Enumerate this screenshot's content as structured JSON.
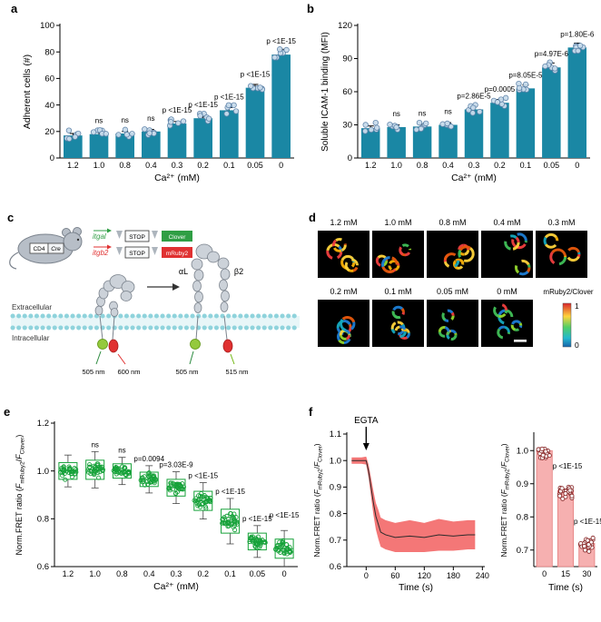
{
  "figure": {
    "bg": "#ffffff"
  },
  "panels": {
    "a": {
      "letter": "a"
    },
    "b": {
      "letter": "b"
    },
    "c": {
      "letter": "c"
    },
    "d": {
      "letter": "d"
    },
    "e": {
      "letter": "e"
    },
    "f": {
      "letter": "f"
    }
  },
  "chart_data": [
    {
      "id": "a",
      "type": "bar",
      "xlabel": "Ca²⁺ (mM)",
      "ylabel": "Adherent cells (#)",
      "categories": [
        "1.2",
        "1.0",
        "0.8",
        "0.4",
        "0.3",
        "0.2",
        "0.1",
        "0.05",
        "0"
      ],
      "values": [
        17,
        18,
        18.5,
        20,
        26,
        30,
        36,
        53,
        78
      ],
      "errors": [
        1.5,
        1.5,
        1.5,
        1.5,
        1.5,
        1.5,
        2,
        2.5,
        4
      ],
      "significance": [
        "",
        "ns",
        "ns",
        "ns",
        "p <1E-15",
        "p <1E-15",
        "p <1E-15",
        "p <1E-15",
        "p <1E-15"
      ],
      "ylim": [
        0,
        100
      ],
      "yticks": [
        0,
        20,
        40,
        60,
        80,
        100
      ],
      "ytick_decimals": 0,
      "bar_color": "#1a87a4",
      "dot_fill": "#c9dcec",
      "dot_edge": "#5d82a8",
      "points_per_bar": 6
    },
    {
      "id": "b",
      "type": "bar",
      "xlabel": "Ca²⁺ (mM)",
      "ylabel": "Soluble ICAM-1 binding (MFI)",
      "categories": [
        "1.2",
        "1.0",
        "0.8",
        "0.4",
        "0.3",
        "0.2",
        "0.1",
        "0.05",
        "0"
      ],
      "values": [
        27,
        28,
        28.5,
        30,
        44,
        50,
        63,
        82,
        100
      ],
      "errors": [
        2,
        2,
        2,
        2,
        3,
        3,
        3,
        4,
        4
      ],
      "significance": [
        "",
        "ns",
        "ns",
        "ns",
        "p=2.86E-5",
        "p=0.0005",
        "p=8.05E-5",
        "p=4.97E-6",
        "p=1.80E-6"
      ],
      "ylim": [
        0,
        120
      ],
      "yticks": [
        0,
        30,
        60,
        90,
        120
      ],
      "ytick_decimals": 0,
      "bar_color": "#1a87a4",
      "dot_fill": "#c9dcec",
      "dot_edge": "#5d82a8",
      "points_per_bar": 6
    },
    {
      "id": "e",
      "type": "box-scatter",
      "xlabel": "Ca²⁺ (mM)",
      "ylabel_parts": [
        [
          "Norm.FRET ratio (",
          ""
        ],
        [
          "F",
          "i"
        ],
        [
          "mRuby2",
          "sub"
        ],
        [
          "/",
          ""
        ],
        [
          "F",
          "i"
        ],
        [
          "Clover",
          "sub"
        ],
        [
          ")",
          ""
        ]
      ],
      "categories": [
        "1.2",
        "1.0",
        "0.8",
        "0.4",
        "0.3",
        "0.2",
        "0.1",
        "0.05",
        "0"
      ],
      "medians": [
        1.0,
        1.005,
        1.0,
        0.965,
        0.93,
        0.875,
        0.79,
        0.705,
        0.675
      ],
      "spreads": [
        0.035,
        0.04,
        0.03,
        0.03,
        0.035,
        0.04,
        0.05,
        0.035,
        0.04
      ],
      "significance": [
        "",
        "ns",
        "ns",
        "p=0.0094",
        "p=3.03E-9",
        "p <1E-15",
        "p <1E-15",
        "p <1E-15",
        "p <1E-15"
      ],
      "sig_dy": [
        0,
        0,
        0,
        0,
        0,
        0,
        0,
        0,
        -9
      ],
      "ylim": [
        0.6,
        1.2
      ],
      "yticks": [
        0.6,
        0.8,
        1.0,
        1.2
      ],
      "ytick_decimals": 1,
      "color": "#17a23a",
      "points_per_box": 34
    },
    {
      "id": "f_line",
      "type": "line",
      "xlabel": "Time (s)",
      "ylabel_parts": [
        [
          "Norm.FRET ratio (",
          ""
        ],
        [
          "F",
          "i"
        ],
        [
          "mRuby2",
          "sub"
        ],
        [
          "/",
          ""
        ],
        [
          "F",
          "i"
        ],
        [
          "Clover",
          "sub"
        ],
        [
          ")",
          ""
        ]
      ],
      "annotation": "EGTA",
      "x": [
        -30,
        -20,
        -10,
        0,
        5,
        10,
        15,
        20,
        25,
        30,
        40,
        60,
        90,
        120,
        150,
        180,
        210,
        225
      ],
      "y": [
        1.0,
        1.0,
        1.0,
        1.0,
        0.96,
        0.9,
        0.84,
        0.79,
        0.76,
        0.73,
        0.72,
        0.71,
        0.715,
        0.71,
        0.72,
        0.715,
        0.72,
        0.72
      ],
      "band": [
        0.012,
        0.012,
        0.012,
        0.015,
        0.025,
        0.035,
        0.045,
        0.05,
        0.055,
        0.055,
        0.055,
        0.055,
        0.06,
        0.055,
        0.06,
        0.055,
        0.055,
        0.055
      ],
      "xlim": [
        -40,
        245
      ],
      "xticks": [
        0,
        60,
        120,
        180,
        240
      ],
      "ylim": [
        0.6,
        1.1
      ],
      "yticks": [
        0.6,
        0.7,
        0.8,
        0.9,
        1.0,
        1.1
      ],
      "ytick_decimals": 1,
      "line_color": "#2b2b2b",
      "band_color": "#f25f5f"
    },
    {
      "id": "f_bar",
      "type": "bar-scatter",
      "xlabel": "Time (s)",
      "ylabel_parts": [
        [
          "Norm.FRET ratio (",
          ""
        ],
        [
          "F",
          "i"
        ],
        [
          "mRuby2",
          "sub"
        ],
        [
          "/",
          ""
        ],
        [
          "F",
          "i"
        ],
        [
          "Clover",
          "sub"
        ],
        [
          ")",
          ""
        ]
      ],
      "categories": [
        "0",
        "15",
        "30"
      ],
      "values": [
        1.0,
        0.88,
        0.72
      ],
      "spreads": [
        0.03,
        0.04,
        0.035
      ],
      "significance": [
        "",
        "p <1E-15",
        "p <1E-15"
      ],
      "ylim": [
        0.65,
        1.05
      ],
      "yticks": [
        0.7,
        0.8,
        0.9,
        1.0
      ],
      "ytick_decimals": 1,
      "bar_color": "#f6b0b0",
      "bar_edge": "#e57f7f",
      "dot_edge": "#8a2a2a",
      "points_per_bar": 26
    }
  ],
  "diagram_c": {
    "promoter": "CD4",
    "recombinase": "Cre",
    "gene1": "itgal",
    "gene2": "itgb2",
    "stop": "STOP",
    "fp1": "Clover",
    "fp2": "mRuby2",
    "gene1_color": "#2f9e44",
    "gene2_color": "#e03131",
    "alpha_label": "αL",
    "beta_label": "β2",
    "extracellular": "Extracellular",
    "intracellular": "Intracellular",
    "bent_excitation": "505 nm",
    "bent_emission": "600 nm",
    "open_excitation": "505 nm",
    "open_emission": "515 nm"
  },
  "images_d": {
    "tiles": [
      {
        "label": "1.2 mM",
        "level": 0.9
      },
      {
        "label": "1.0 mM",
        "level": 0.85
      },
      {
        "label": "0.8 mM",
        "level": 0.8
      },
      {
        "label": "0.4 mM",
        "level": 0.7
      },
      {
        "label": "0.3 mM",
        "level": 0.6
      },
      {
        "label": "0.2 mM",
        "level": 0.5
      },
      {
        "label": "0.1 mM",
        "level": 0.4
      },
      {
        "label": "0.05 mM",
        "level": 0.3
      },
      {
        "label": "0 mM",
        "level": 0.15
      }
    ],
    "colorbar": {
      "title": "mRuby2/Clover",
      "max": "1",
      "min": "0"
    }
  }
}
